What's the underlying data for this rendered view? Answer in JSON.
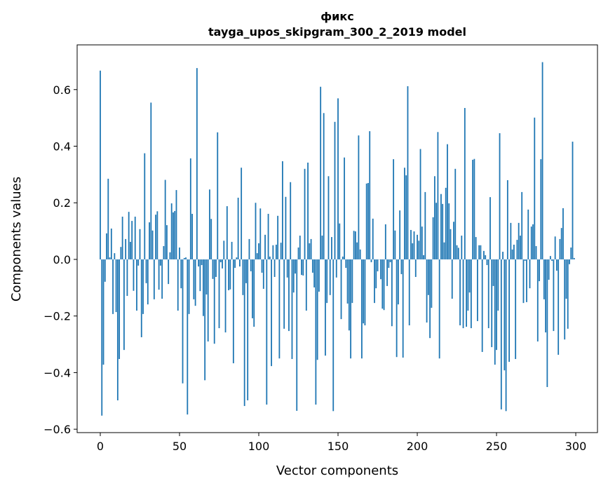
{
  "chart_data": {
    "type": "bar",
    "title": "фикс",
    "subtitle": "tayga_upos_skipgram_300_2_2019 model",
    "xlabel": "Vector components",
    "ylabel": "Components values",
    "xlim": [
      -14.6,
      313.7
    ],
    "ylim": [
      -0.612,
      0.758
    ],
    "xticks": [
      0,
      50,
      100,
      150,
      200,
      250,
      300
    ],
    "xtick_labels": [
      "0",
      "50",
      "100",
      "150",
      "200",
      "250",
      "300"
    ],
    "yticks": [
      -0.6,
      -0.4,
      -0.2,
      0.0,
      0.2,
      0.4,
      0.6
    ],
    "ytick_labels": [
      "−0.6",
      "−0.4",
      "−0.2",
      "0.0",
      "0.2",
      "0.4",
      "0.6"
    ],
    "grid": false,
    "color": "#1f77b4",
    "values": [
      0.667,
      -0.552,
      -0.372,
      -0.079,
      0.092,
      0.285,
      0.007,
      0.109,
      -0.193,
      0.022,
      -0.186,
      -0.498,
      -0.352,
      0.044,
      0.151,
      -0.32,
      0.072,
      -0.129,
      0.168,
      0.062,
      0.136,
      -0.111,
      0.151,
      -0.181,
      -0.022,
      0.107,
      -0.275,
      -0.193,
      0.375,
      -0.084,
      -0.159,
      0.131,
      0.554,
      0.102,
      -0.141,
      0.158,
      0.17,
      -0.107,
      -0.022,
      -0.139,
      0.047,
      0.281,
      0.121,
      -0.087,
      0.025,
      0.198,
      0.166,
      0.171,
      0.245,
      -0.181,
      0.042,
      -0.102,
      -0.438,
      0.005,
      0.007,
      -0.548,
      -0.193,
      0.357,
      0.161,
      -0.141,
      -0.164,
      0.676,
      -0.025,
      -0.112,
      -0.02,
      -0.2,
      -0.427,
      -0.124,
      -0.29,
      0.247,
      0.143,
      -0.069,
      -0.298,
      -0.062,
      0.449,
      -0.243,
      -0.01,
      -0.032,
      0.066,
      -0.258,
      0.188,
      -0.109,
      -0.106,
      0.062,
      -0.367,
      -0.03,
      0.007,
      0.218,
      -0.025,
      0.324,
      -0.126,
      -0.518,
      -0.084,
      -0.498,
      0.072,
      -0.042,
      -0.208,
      -0.238,
      0.2,
      0.022,
      0.057,
      0.18,
      -0.047,
      -0.104,
      0.087,
      -0.513,
      0.161,
      0.01,
      -0.377,
      0.05,
      -0.062,
      0.052,
      0.154,
      -0.35,
      0.059,
      0.347,
      -0.245,
      0.221,
      -0.064,
      -0.253,
      0.273,
      -0.352,
      -0.117,
      -0.05,
      -0.535,
      0.042,
      0.084,
      -0.055,
      -0.057,
      0.32,
      -0.181,
      0.342,
      0.057,
      0.072,
      -0.047,
      -0.099,
      -0.513,
      -0.355,
      -0.114,
      0.61,
      0.084,
      0.517,
      -0.34,
      -0.154,
      0.294,
      -0.126,
      0.079,
      -0.536,
      0.486,
      -0.064,
      0.569,
      0.127,
      -0.211,
      0.01,
      0.36,
      -0.03,
      -0.156,
      -0.251,
      -0.35,
      -0.154,
      0.101,
      0.099,
      0.06,
      0.438,
      0.035,
      -0.35,
      -0.226,
      -0.233,
      0.268,
      0.27,
      0.453,
      -0.01,
      0.144,
      -0.154,
      -0.102,
      -0.042,
      0.0,
      -0.07,
      -0.174,
      -0.179,
      0.124,
      -0.094,
      -0.03,
      -0.01,
      -0.236,
      0.354,
      0.102,
      -0.345,
      -0.159,
      0.173,
      -0.052,
      -0.347,
      0.324,
      0.297,
      0.612,
      -0.233,
      0.104,
      0.057,
      0.099,
      -0.062,
      0.087,
      0.066,
      0.39,
      0.116,
      0.015,
      0.238,
      -0.223,
      -0.126,
      -0.278,
      -0.171,
      0.149,
      0.294,
      0.2,
      0.45,
      -0.35,
      0.231,
      0.196,
      0.06,
      0.253,
      0.407,
      0.198,
      0.107,
      -0.139,
      0.133,
      0.32,
      0.05,
      0.041,
      -0.233,
      0.084,
      -0.243,
      0.535,
      -0.238,
      -0.181,
      -0.117,
      -0.243,
      0.352,
      0.355,
      0.079,
      -0.218,
      0.05,
      0.05,
      -0.327,
      0.03,
      0.015,
      -0.02,
      -0.243,
      0.22,
      -0.31,
      -0.094,
      -0.372,
      -0.32,
      -0.181,
      0.446,
      -0.53,
      0.027,
      -0.392,
      -0.536,
      0.28,
      -0.362,
      0.129,
      0.035,
      0.052,
      -0.352,
      0.069,
      0.129,
      0.084,
      0.238,
      -0.154,
      -0.005,
      -0.151,
      0.176,
      -0.102,
      0.116,
      0.124,
      0.501,
      0.047,
      -0.29,
      -0.077,
      0.354,
      0.697,
      -0.141,
      -0.258,
      -0.451,
      -0.072,
      0.012,
      -0.005,
      -0.253,
      0.081,
      -0.04,
      -0.337,
      0.072,
      0.111,
      0.181,
      -0.283,
      -0.139,
      -0.245,
      -0.017,
      0.042,
      0.416,
      0.005
    ]
  }
}
